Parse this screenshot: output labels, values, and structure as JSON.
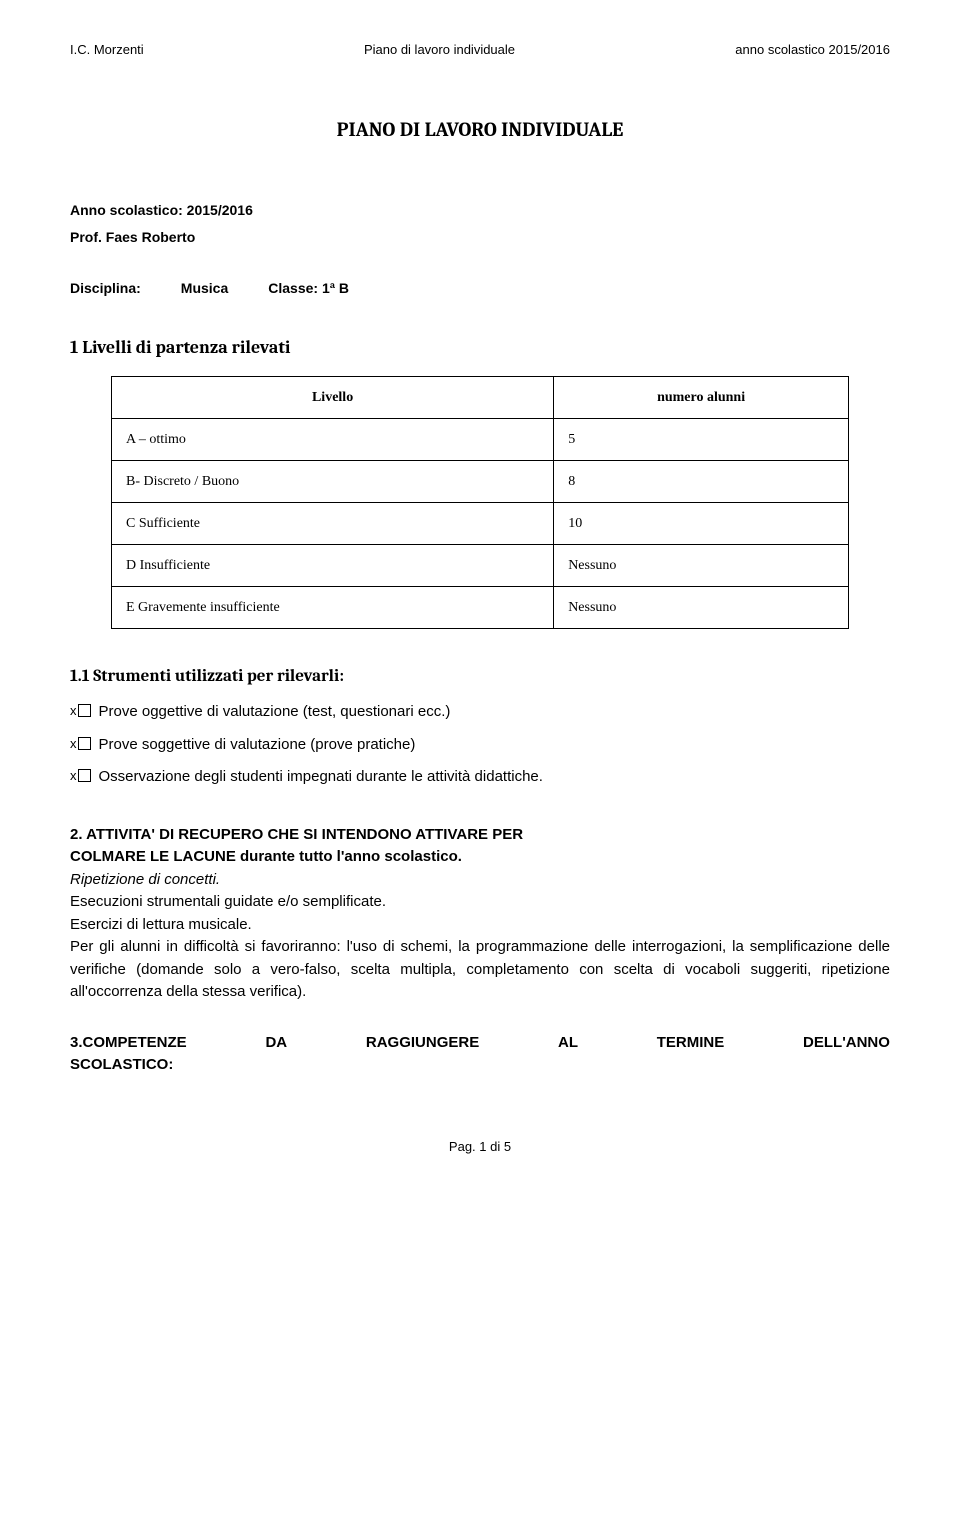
{
  "header": {
    "left": "I.C. Morzenti",
    "center": "Piano di lavoro individuale",
    "right": "anno scolastico 2015/2016"
  },
  "title": "PIANO DI LAVORO INDIVIDUALE",
  "meta": {
    "anno_label": "Anno scolastico: 2015/2016",
    "prof_label": "Prof. Faes Roberto",
    "disciplina_label": "Disciplina:",
    "disciplina_value": "Musica",
    "classe_label": "Classe:  1ª B"
  },
  "section1": {
    "heading": "1 Livelli di partenza rilevati",
    "table": {
      "col1_header": "Livello",
      "col2_header": "numero alunni",
      "rows": [
        {
          "label": "A – ottimo",
          "value": "5"
        },
        {
          "label": "B- Discreto / Buono",
          "value": "8"
        },
        {
          "label": "C Sufficiente",
          "value": "10"
        },
        {
          "label": "D Insufficiente",
          "value": "Nessuno"
        },
        {
          "label": "E Gravemente insufficiente",
          "value": "Nessuno"
        }
      ]
    },
    "sub": {
      "heading": "1.1 Strumenti utilizzati per rilevarli:",
      "items": [
        "Prove oggettive di valutazione (test, questionari ecc.)",
        "Prove soggettive di valutazione (prove pratiche)",
        "Osservazione degli studenti impegnati durante le attività didattiche."
      ]
    }
  },
  "section2": {
    "title_line1": "2. ATTIVITA' DI  RECUPERO CHE SI INTENDONO ATTIVARE PER",
    "title_line2": "COLMARE LE LACUNE durante tutto l'anno scolastico.",
    "italic_line": "Ripetizione di concetti.",
    "body": "Esecuzioni strumentali guidate e/o semplificate.\nEsercizi di lettura musicale.\nPer gli alunni in difficoltà si favoriranno: l'uso di schemi, la programmazione delle interrogazioni, la semplificazione delle verifiche (domande solo a vero-falso, scelta multipla, completamento con scelta di vocaboli suggeriti, ripetizione all'occorrenza della stessa verifica)."
  },
  "section3": {
    "left": "3.COMPETENZE",
    "mid": "DA",
    "mid2": "RAGGIUNGERE",
    "mid3": "AL",
    "mid4": "TERMINE",
    "right": "DELL'ANNO",
    "line2": "SCOLASTICO:"
  },
  "footer": "Pag. 1 di 5"
}
